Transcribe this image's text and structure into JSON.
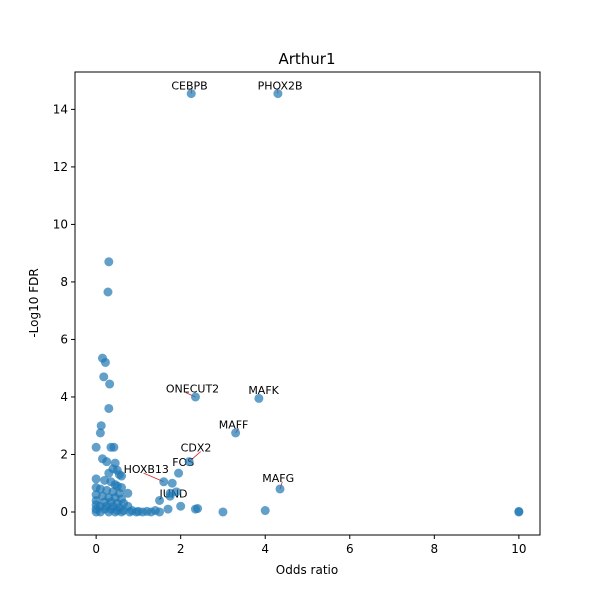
{
  "chart_data": {
    "type": "scatter",
    "title": "Arthur1",
    "xlabel": "Odds ratio",
    "ylabel": "-Log10 FDR",
    "xlim": [
      -0.5,
      10.5
    ],
    "ylim": [
      -0.8,
      15.3
    ],
    "xticks": [
      0,
      2,
      4,
      6,
      8,
      10
    ],
    "yticks": [
      0,
      2,
      4,
      6,
      8,
      10,
      12,
      14
    ],
    "grid": false,
    "point_color": "#1f77b4",
    "point_alpha": 0.7,
    "label_color": "#d62728",
    "points": [
      [
        2.25,
        14.55
      ],
      [
        4.3,
        14.55
      ],
      [
        0.3,
        8.7
      ],
      [
        0.28,
        7.65
      ],
      [
        0.15,
        5.35
      ],
      [
        0.22,
        5.2
      ],
      [
        0.18,
        4.7
      ],
      [
        0.32,
        4.45
      ],
      [
        2.35,
        4.0
      ],
      [
        3.85,
        3.95
      ],
      [
        0.3,
        3.6
      ],
      [
        3.3,
        2.75
      ],
      [
        0.12,
        3.0
      ],
      [
        0.1,
        2.75
      ],
      [
        0.0,
        2.25
      ],
      [
        0.35,
        2.25
      ],
      [
        0.42,
        2.25
      ],
      [
        0.15,
        1.85
      ],
      [
        0.25,
        1.75
      ],
      [
        0.45,
        1.7
      ],
      [
        2.2,
        1.75
      ],
      [
        1.95,
        1.35
      ],
      [
        0.4,
        1.5
      ],
      [
        0.5,
        1.45
      ],
      [
        0.3,
        1.35
      ],
      [
        0.55,
        1.3
      ],
      [
        0.6,
        1.25
      ],
      [
        0.0,
        1.15
      ],
      [
        0.2,
        1.1
      ],
      [
        0.35,
        1.05
      ],
      [
        1.6,
        1.05
      ],
      [
        1.8,
        1.0
      ],
      [
        0.45,
        0.95
      ],
      [
        0.5,
        0.9
      ],
      [
        0.6,
        0.85
      ],
      [
        1.9,
        0.7
      ],
      [
        1.75,
        0.65
      ],
      [
        0.0,
        0.85
      ],
      [
        0.1,
        0.8
      ],
      [
        0.25,
        0.75
      ],
      [
        0.4,
        0.7
      ],
      [
        0.55,
        0.65
      ],
      [
        0.75,
        0.65
      ],
      [
        4.35,
        0.8
      ],
      [
        0.0,
        0.6
      ],
      [
        0.15,
        0.55
      ],
      [
        0.3,
        0.5
      ],
      [
        0.45,
        0.5
      ],
      [
        0.6,
        0.45
      ],
      [
        1.75,
        0.55
      ],
      [
        1.5,
        0.4
      ],
      [
        0.0,
        0.4
      ],
      [
        0.2,
        0.35
      ],
      [
        0.35,
        0.35
      ],
      [
        0.5,
        0.3
      ],
      [
        0.65,
        0.3
      ],
      [
        0.0,
        0.25
      ],
      [
        0.1,
        0.2
      ],
      [
        0.25,
        0.2
      ],
      [
        0.4,
        0.2
      ],
      [
        0.55,
        0.15
      ],
      [
        0.75,
        0.2
      ],
      [
        2.0,
        0.2
      ],
      [
        2.35,
        0.1
      ],
      [
        2.4,
        0.12
      ],
      [
        0.0,
        0.1
      ],
      [
        0.2,
        0.1
      ],
      [
        0.35,
        0.1
      ],
      [
        0.5,
        0.05
      ],
      [
        0.65,
        0.05
      ],
      [
        0.85,
        0.05
      ],
      [
        1.0,
        0.02
      ],
      [
        1.1,
        0.0
      ],
      [
        1.2,
        0.02
      ],
      [
        1.3,
        0.0
      ],
      [
        1.4,
        0.05
      ],
      [
        1.5,
        0.0
      ],
      [
        1.7,
        0.1
      ],
      [
        3.0,
        0.0
      ],
      [
        4.0,
        0.05
      ],
      [
        0.0,
        0.0
      ],
      [
        0.1,
        0.0
      ],
      [
        0.3,
        0.0
      ],
      [
        0.45,
        0.0
      ],
      [
        0.6,
        0.0
      ],
      [
        0.8,
        0.0
      ],
      [
        0.95,
        0.0
      ],
      [
        10.0,
        0.0
      ],
      [
        10.0,
        0.02
      ]
    ],
    "annotations": [
      {
        "text": "CEBPB",
        "x": 2.25,
        "y": 14.55,
        "tx": 1.78,
        "ty": 14.7
      },
      {
        "text": "PHOX2B",
        "x": 4.3,
        "y": 14.55,
        "tx": 3.82,
        "ty": 14.7
      },
      {
        "text": "ONECUT2",
        "x": 2.35,
        "y": 4.0,
        "tx": 1.65,
        "ty": 4.15
      },
      {
        "text": "MAFK",
        "x": 3.85,
        "y": 3.95,
        "tx": 3.6,
        "ty": 4.1
      },
      {
        "text": "MAFF",
        "x": 3.3,
        "y": 2.75,
        "tx": 2.9,
        "ty": 2.9
      },
      {
        "text": "CDX2",
        "x": 2.2,
        "y": 1.75,
        "tx": 2.0,
        "ty": 2.1
      },
      {
        "text": "FOS",
        "x": 1.95,
        "y": 1.35,
        "tx": 1.8,
        "ty": 1.6
      },
      {
        "text": "HOXB13",
        "x": 1.6,
        "y": 1.05,
        "tx": 0.65,
        "ty": 1.35
      },
      {
        "text": "JUND",
        "x": 1.5,
        "y": 0.4,
        "tx": 1.5,
        "ty": 0.5
      },
      {
        "text": "MAFG",
        "x": 4.35,
        "y": 0.8,
        "tx": 3.93,
        "ty": 1.05
      }
    ]
  }
}
